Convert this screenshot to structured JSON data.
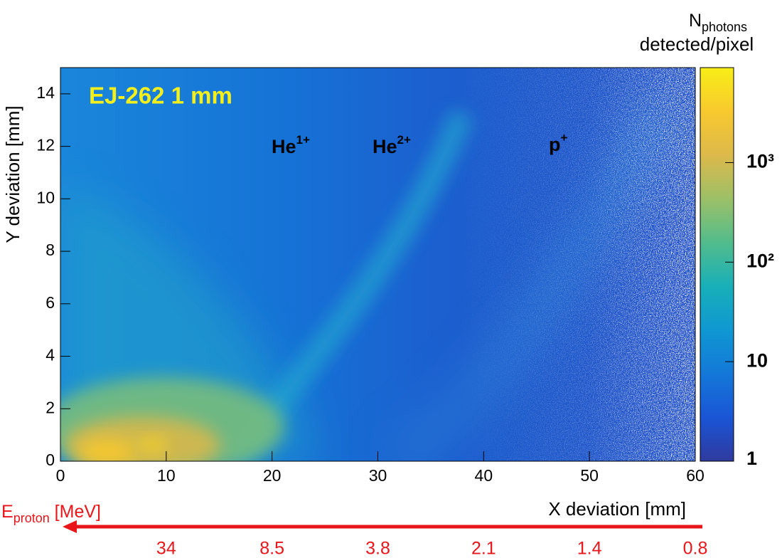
{
  "chart_data": {
    "type": "heatmap",
    "annotation": "EJ-262 1 mm",
    "species": [
      {
        "text": "He",
        "sup": "1+"
      },
      {
        "text": "He",
        "sup": "2+"
      },
      {
        "text": "p",
        "sup": "+"
      }
    ],
    "x_label": "X deviation [mm]",
    "y_label": "Y deviation [mm]",
    "xlim": [
      0,
      60
    ],
    "xticks": [
      0,
      10,
      20,
      30,
      40,
      50,
      60
    ],
    "ylim": [
      0,
      15
    ],
    "yticks": [
      0,
      2,
      4,
      6,
      8,
      10,
      12,
      14
    ],
    "colorbar": {
      "title_main": "N",
      "title_sub": "photons",
      "title_line2": "detected/pixel",
      "zlim": [
        1,
        9000
      ],
      "log": true,
      "zticks": [
        1,
        10,
        {
          "value": 100,
          "label": "10²"
        },
        {
          "value": 1000,
          "label": "10³"
        }
      ],
      "colormap": [
        "#2f3a9e",
        "#1a55d6",
        "#1478d8",
        "#0f98d2",
        "#18afb8",
        "#52bc8c",
        "#9cc067",
        "#dcb94a",
        "#f8c92e",
        "#f7ee16"
      ]
    },
    "energy_axis": {
      "label_main": "E",
      "label_sub": "proton",
      "label_unit": " [MeV]",
      "color": "#e8161b",
      "x": [
        10,
        20,
        30,
        40,
        50,
        60
      ],
      "values": [
        34,
        8.5,
        3.8,
        2.1,
        1.4,
        0.8
      ]
    }
  }
}
